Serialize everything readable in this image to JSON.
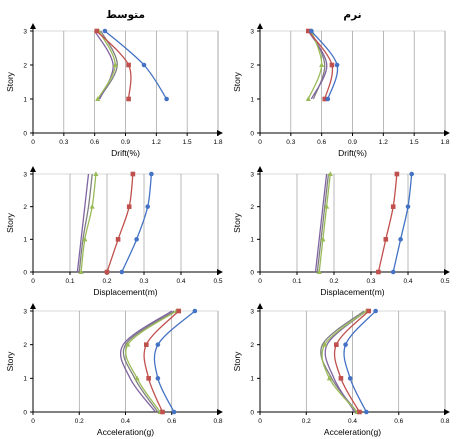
{
  "series_colors": [
    "#4472c4",
    "#c0504d",
    "#9bbb59",
    "#8064a2",
    "#7f7f7f"
  ],
  "series_markers": [
    "circle",
    "square",
    "triangle",
    "none",
    "none"
  ],
  "chart_data": [
    {
      "type": "line",
      "title": "متوسط",
      "xlabel": "Drift(%)",
      "ylabel": "Story",
      "xlim": [
        0,
        1.8
      ],
      "ylim": [
        0,
        3
      ],
      "xticks": [
        "0",
        "0.3",
        "0.6",
        "0.9",
        "1.2",
        "1.5",
        "1.8"
      ],
      "yticks": [
        "0",
        "1",
        "2",
        "3"
      ],
      "y": [
        1,
        2,
        3
      ],
      "series": [
        {
          "values": [
            1.3,
            1.08,
            0.7
          ]
        },
        {
          "values": [
            0.93,
            0.93,
            0.62
          ]
        },
        {
          "values": [
            0.63,
            0.8,
            0.64
          ]
        },
        {
          "values": [
            0.65,
            0.78,
            0.6
          ]
        },
        {
          "values": [
            0.64,
            0.82,
            0.66
          ]
        }
      ]
    },
    {
      "type": "line",
      "title": "نرم",
      "xlabel": "Drift(%)",
      "ylabel": "Story",
      "xlim": [
        0,
        1.8
      ],
      "ylim": [
        0,
        3
      ],
      "xticks": [
        "0",
        "0.3",
        "0.6",
        "0.9",
        "1.2",
        "1.5",
        "1.8"
      ],
      "yticks": [
        "0",
        "1",
        "2",
        "3"
      ],
      "y": [
        1,
        2,
        3
      ],
      "series": [
        {
          "values": [
            0.66,
            0.75,
            0.5
          ]
        },
        {
          "values": [
            0.63,
            0.7,
            0.47
          ]
        },
        {
          "values": [
            0.47,
            0.6,
            0.5
          ]
        },
        {
          "values": [
            0.5,
            0.65,
            0.47
          ]
        },
        {
          "values": [
            0.52,
            0.63,
            0.49
          ]
        }
      ]
    },
    {
      "type": "line",
      "xlabel": "Displacement(m)",
      "ylabel": "Story",
      "xlim": [
        0,
        0.5
      ],
      "ylim": [
        0,
        3
      ],
      "xticks": [
        "0",
        "0.1",
        "0.2",
        "0.3",
        "0.4",
        "0.5"
      ],
      "yticks": [
        "0",
        "1",
        "2",
        "3"
      ],
      "y": [
        0,
        1,
        2,
        3
      ],
      "series": [
        {
          "values": [
            0.24,
            0.28,
            0.31,
            0.32
          ]
        },
        {
          "values": [
            0.2,
            0.23,
            0.26,
            0.27
          ]
        },
        {
          "values": [
            0.13,
            0.14,
            0.16,
            0.17
          ]
        },
        {
          "values": [
            0.12,
            0.13,
            0.14,
            0.15
          ]
        },
        {
          "values": [
            0.125,
            0.135,
            0.15,
            0.16
          ]
        }
      ]
    },
    {
      "type": "line",
      "xlabel": "Displacement(m)",
      "ylabel": "Story",
      "xlim": [
        0,
        0.5
      ],
      "ylim": [
        0,
        3
      ],
      "xticks": [
        "0",
        "0.1",
        "0.2",
        "0.3",
        "0.4",
        "0.5"
      ],
      "yticks": [
        "0",
        "1",
        "2",
        "3"
      ],
      "y": [
        0,
        1,
        2,
        3
      ],
      "series": [
        {
          "values": [
            0.36,
            0.38,
            0.4,
            0.41
          ]
        },
        {
          "values": [
            0.32,
            0.34,
            0.36,
            0.37
          ]
        },
        {
          "values": [
            0.16,
            0.17,
            0.18,
            0.19
          ]
        },
        {
          "values": [
            0.15,
            0.16,
            0.17,
            0.18
          ]
        },
        {
          "values": [
            0.155,
            0.165,
            0.175,
            0.185
          ]
        }
      ]
    },
    {
      "type": "line",
      "xlabel": "Acceleration(g)",
      "ylabel": "Story",
      "xlim": [
        0,
        0.8
      ],
      "ylim": [
        0,
        3
      ],
      "xticks": [
        "0",
        "0.2",
        "0.4",
        "0.6",
        "0.8"
      ],
      "yticks": [
        "0",
        "1",
        "2",
        "3"
      ],
      "y": [
        0,
        1,
        2,
        3
      ],
      "series": [
        {
          "values": [
            0.61,
            0.54,
            0.54,
            0.7
          ]
        },
        {
          "values": [
            0.56,
            0.5,
            0.49,
            0.63
          ]
        },
        {
          "values": [
            0.55,
            0.45,
            0.41,
            0.62
          ]
        },
        {
          "values": [
            0.53,
            0.42,
            0.39,
            0.6
          ]
        },
        {
          "values": [
            0.54,
            0.44,
            0.4,
            0.61
          ]
        }
      ]
    },
    {
      "type": "line",
      "xlabel": "Acceleration(g)",
      "ylabel": "Story",
      "xlim": [
        0,
        0.8
      ],
      "ylim": [
        0,
        3
      ],
      "xticks": [
        "0",
        "0.2",
        "0.4",
        "0.6",
        "0.8"
      ],
      "yticks": [
        "0",
        "1",
        "2",
        "3"
      ],
      "y": [
        0,
        1,
        2,
        3
      ],
      "series": [
        {
          "values": [
            0.46,
            0.39,
            0.37,
            0.5
          ]
        },
        {
          "values": [
            0.43,
            0.35,
            0.33,
            0.47
          ]
        },
        {
          "values": [
            0.42,
            0.3,
            0.28,
            0.46
          ]
        },
        {
          "values": [
            0.41,
            0.32,
            0.29,
            0.46
          ]
        },
        {
          "values": [
            0.42,
            0.31,
            0.27,
            0.45
          ]
        }
      ]
    }
  ]
}
